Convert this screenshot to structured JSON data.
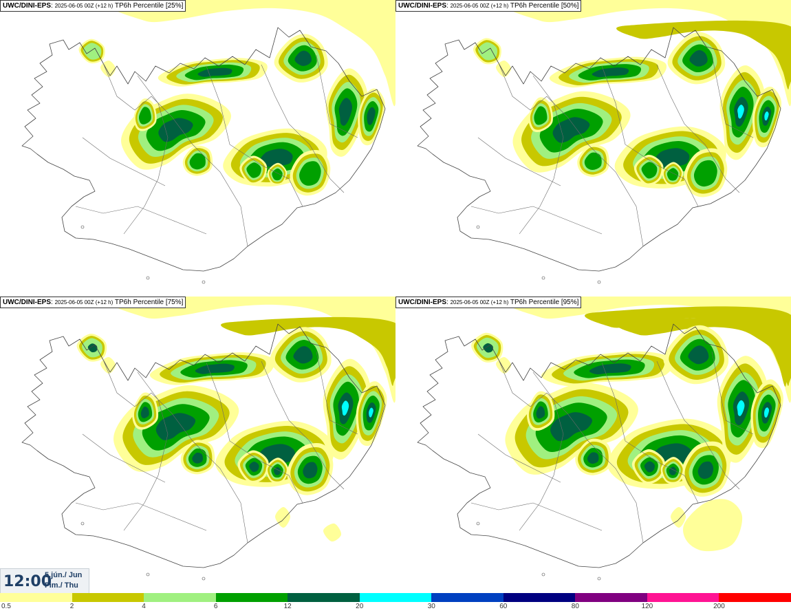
{
  "panels": [
    {
      "source": "UWC/DINI-EPS",
      "run": "2025-06-05 00Z (+12 h)",
      "desc": "TP6h Percentile [25%]",
      "level": 0
    },
    {
      "source": "UWC/DINI-EPS",
      "run": "2025-06-05 00Z (+12 h)",
      "desc": "TP6h Percentile [50%]",
      "level": 1
    },
    {
      "source": "UWC/DINI-EPS",
      "run": "2025-06-05 00Z (+12 h)",
      "desc": "TP6h Percentile [75%]",
      "level": 2
    },
    {
      "source": "UWC/DINI-EPS",
      "run": "2025-06-05 00Z (+12 h)",
      "desc": "TP6h Percentile [95%]",
      "level": 3
    }
  ],
  "timebox": {
    "time": "12:00",
    "date_line1": "5.jún./ Jun",
    "date_line2": "Fim./ Thu"
  },
  "legend": {
    "colors": [
      "#ffff99",
      "#c8c800",
      "#a0f080",
      "#00a000",
      "#006040",
      "#00ffff",
      "#0040c0",
      "#000080",
      "#800080",
      "#ff1493",
      "#ff0000"
    ],
    "ticks": [
      "0.5",
      "2",
      "4",
      "6",
      "12",
      "20",
      "30",
      "60",
      "80",
      "120",
      "200"
    ]
  }
}
